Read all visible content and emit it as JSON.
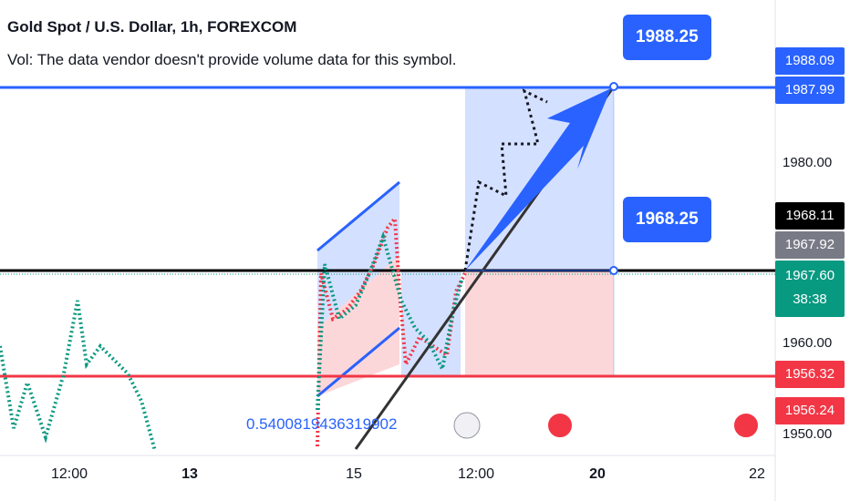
{
  "header": {
    "title": "Gold Spot / U.S. Dollar, 1h, FOREXCOM",
    "subtitle": "Vol: The data vendor doesn't provide volume data for this symbol."
  },
  "callouts": [
    "1988.25",
    "1968.25"
  ],
  "annotation": "0.5400819436319902",
  "price_ticks": [
    "1980.00",
    "1960.00",
    "1950.00"
  ],
  "price_tags": [
    "1988.09",
    "1987.99",
    "1968.11",
    "1967.92",
    "1967.60",
    "1956.32",
    "1956.24"
  ],
  "countdown": "38:38",
  "time_labels": [
    "12:00",
    "13",
    "15",
    "12:00",
    "20",
    "22"
  ]
}
